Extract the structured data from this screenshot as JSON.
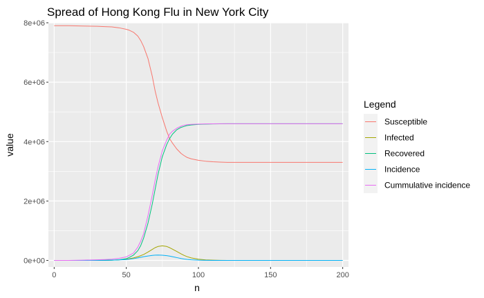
{
  "chart_data": {
    "type": "line",
    "title": "Spread of Hong Kong Flu in New York City",
    "xlabel": "n",
    "ylabel": "value",
    "xlim": [
      -4,
      204
    ],
    "ylim": [
      -220000,
      8000000
    ],
    "x_ticks": [
      0,
      50,
      100,
      150,
      200
    ],
    "x_tick_labels": [
      "0",
      "50",
      "100",
      "150",
      "200"
    ],
    "y_ticks": [
      0,
      2000000,
      4000000,
      6000000,
      8000000
    ],
    "y_tick_labels": [
      "0e+00",
      "2e+06",
      "4e+06",
      "6e+06",
      "8e+06"
    ],
    "grid": true,
    "legend": {
      "title": "Legend",
      "position": "right"
    },
    "x": [
      0,
      10,
      20,
      30,
      35,
      40,
      45,
      50,
      52,
      55,
      58,
      60,
      62,
      65,
      68,
      70,
      72,
      75,
      78,
      80,
      82,
      85,
      88,
      90,
      92,
      95,
      100,
      105,
      110,
      115,
      120,
      130,
      140,
      150,
      160,
      170,
      180,
      190,
      200
    ],
    "series": [
      {
        "name": "Susceptible",
        "color": "#F8766D",
        "values": [
          7900000,
          7900000,
          7890000,
          7880000,
          7870000,
          7860000,
          7830000,
          7780000,
          7750000,
          7680000,
          7550000,
          7400000,
          7200000,
          6800000,
          6200000,
          5700000,
          5300000,
          4800000,
          4350000,
          4100000,
          3950000,
          3750000,
          3600000,
          3530000,
          3470000,
          3420000,
          3370000,
          3340000,
          3320000,
          3310000,
          3300000,
          3300000,
          3300000,
          3300000,
          3300000,
          3300000,
          3300000,
          3300000,
          3300000
        ]
      },
      {
        "name": "Infected",
        "color": "#A3A500",
        "values": [
          0,
          0,
          1000,
          3000,
          5000,
          10000,
          20000,
          40000,
          55000,
          85000,
          125000,
          160000,
          200000,
          280000,
          370000,
          430000,
          470000,
          490000,
          470000,
          430000,
          380000,
          300000,
          220000,
          170000,
          130000,
          85000,
          40000,
          18000,
          8000,
          3000,
          1000,
          0,
          0,
          0,
          0,
          0,
          0,
          0,
          0
        ]
      },
      {
        "name": "Recovered",
        "color": "#00BF7D",
        "values": [
          0,
          0,
          0,
          0,
          2000,
          5000,
          20000,
          60000,
          100000,
          180000,
          330000,
          500000,
          750000,
          1250000,
          1900000,
          2400000,
          2900000,
          3500000,
          3900000,
          4100000,
          4250000,
          4400000,
          4480000,
          4510000,
          4540000,
          4560000,
          4580000,
          4590000,
          4595000,
          4598000,
          4600000,
          4600000,
          4600000,
          4600000,
          4600000,
          4600000,
          4600000,
          4600000,
          4600000
        ]
      },
      {
        "name": "Incidence",
        "color": "#00B0F6",
        "values": [
          0,
          0,
          1000,
          3000,
          5000,
          10000,
          18000,
          30000,
          40000,
          60000,
          85000,
          105000,
          125000,
          150000,
          170000,
          178000,
          180000,
          175000,
          160000,
          145000,
          125000,
          95000,
          65000,
          48000,
          35000,
          22000,
          10000,
          4000,
          1500,
          500,
          0,
          0,
          0,
          0,
          0,
          0,
          0,
          0,
          0
        ]
      },
      {
        "name": "Cummulative incidence",
        "color": "#E76BF3",
        "values": [
          0,
          0,
          10000,
          20000,
          30000,
          40000,
          70000,
          120000,
          170000,
          250000,
          450000,
          650000,
          900000,
          1500000,
          2200000,
          2700000,
          3150000,
          3700000,
          4050000,
          4250000,
          4350000,
          4450000,
          4520000,
          4550000,
          4570000,
          4580000,
          4590000,
          4595000,
          4598000,
          4600000,
          4600000,
          4600000,
          4600000,
          4600000,
          4600000,
          4600000,
          4600000,
          4600000,
          4600000
        ]
      }
    ]
  }
}
